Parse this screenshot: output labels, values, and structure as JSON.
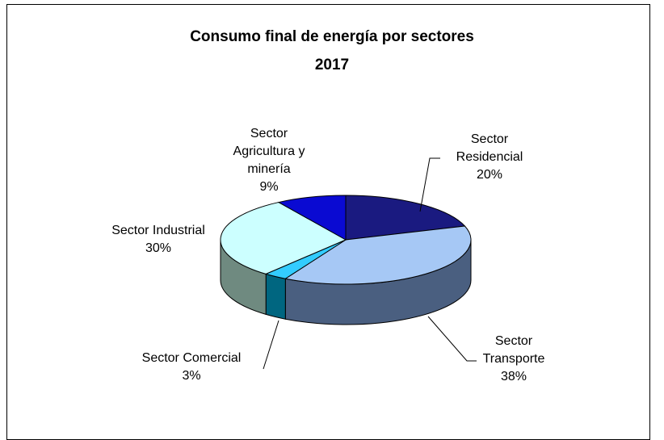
{
  "chart_data": {
    "type": "pie3d",
    "title": "Consumo final de energía por sectores",
    "subtitle": "2017",
    "categories": [
      "Sector Residencial",
      "Sector Transporte",
      "Sector Comercial",
      "Sector Industrial",
      "Sector Agricultura y minería"
    ],
    "values": [
      20,
      38,
      3,
      30,
      9
    ],
    "value_labels": [
      "20%",
      "38%",
      "3%",
      "30%",
      "9%"
    ],
    "colors": [
      "#1a1a80",
      "#a6c8f5",
      "#33ccff",
      "#ccffff",
      "#0a0ad2"
    ],
    "side_colors": [
      "#0d0d50",
      "#4a5f80",
      "#006680",
      "#6f8a80",
      "#05056a"
    ]
  }
}
